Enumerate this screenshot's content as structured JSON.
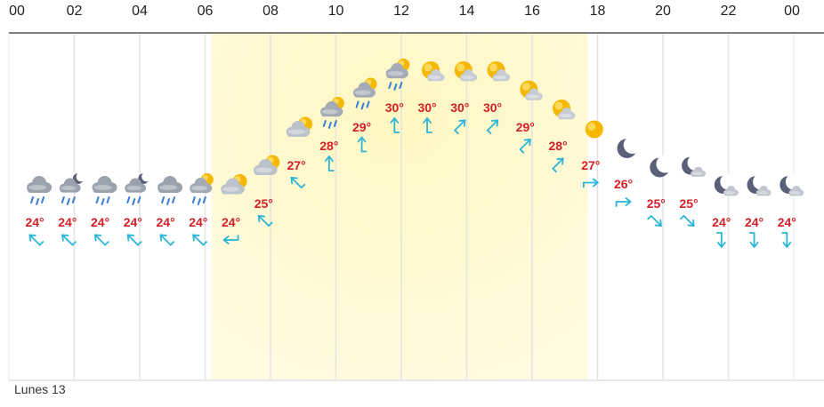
{
  "chart_data": {
    "type": "line",
    "x_ticks": [
      "00",
      "02",
      "04",
      "06",
      "08",
      "10",
      "12",
      "14",
      "16",
      "18",
      "20",
      "22",
      "00"
    ],
    "day_label": "Lunes 13",
    "points": [
      {
        "hour": 0,
        "temp": 24,
        "icon": "rain-cloud-icon",
        "wind_dir": 315
      },
      {
        "hour": 1,
        "temp": 24,
        "icon": "night-rain-icon",
        "wind_dir": 315
      },
      {
        "hour": 2,
        "temp": 24,
        "icon": "rain-cloud-icon",
        "wind_dir": 315
      },
      {
        "hour": 3,
        "temp": 24,
        "icon": "night-rain-icon",
        "wind_dir": 315
      },
      {
        "hour": 4,
        "temp": 24,
        "icon": "rain-cloud-icon",
        "wind_dir": 315
      },
      {
        "hour": 5,
        "temp": 24,
        "icon": "sun-rain-icon",
        "wind_dir": 315
      },
      {
        "hour": 6,
        "temp": 24,
        "icon": "partly-cloudy-icon",
        "wind_dir": 270
      },
      {
        "hour": 7,
        "temp": 25,
        "icon": "partly-cloudy-icon",
        "wind_dir": 315
      },
      {
        "hour": 8,
        "temp": 27,
        "icon": "partly-cloudy-icon",
        "wind_dir": 315
      },
      {
        "hour": 9,
        "temp": 28,
        "icon": "sun-rain-icon",
        "wind_dir": 0
      },
      {
        "hour": 10,
        "temp": 29,
        "icon": "sun-rain-icon",
        "wind_dir": 0
      },
      {
        "hour": 11,
        "temp": 30,
        "icon": "sun-rain-icon",
        "wind_dir": 0
      },
      {
        "hour": 12,
        "temp": 30,
        "icon": "partly-sunny-icon",
        "wind_dir": 0
      },
      {
        "hour": 13,
        "temp": 30,
        "icon": "partly-sunny-icon",
        "wind_dir": 45
      },
      {
        "hour": 14,
        "temp": 30,
        "icon": "partly-sunny-icon",
        "wind_dir": 45
      },
      {
        "hour": 15,
        "temp": 29,
        "icon": "partly-sunny-icon",
        "wind_dir": 45
      },
      {
        "hour": 16,
        "temp": 28,
        "icon": "partly-sunny-icon",
        "wind_dir": 45
      },
      {
        "hour": 17,
        "temp": 27,
        "icon": "sun-icon",
        "wind_dir": 90
      },
      {
        "hour": 18,
        "temp": 26,
        "icon": "moon-icon",
        "wind_dir": 90
      },
      {
        "hour": 19,
        "temp": 25,
        "icon": "moon-icon",
        "wind_dir": 135
      },
      {
        "hour": 20,
        "temp": 25,
        "icon": "moon-cloud-icon",
        "wind_dir": 135
      },
      {
        "hour": 21,
        "temp": 24,
        "icon": "moon-cloud-icon",
        "wind_dir": 180
      },
      {
        "hour": 22,
        "temp": 24,
        "icon": "moon-cloud-icon",
        "wind_dir": 180
      },
      {
        "hour": 23,
        "temp": 24,
        "icon": "moon-cloud-icon",
        "wind_dir": 180
      }
    ],
    "ylim": [
      24,
      30
    ],
    "daylight_hours": [
      6.2,
      17.7
    ],
    "grid": true,
    "colors": {
      "temp_text": "#d32027",
      "wind_arrow": "#2bb5d8",
      "grid": "#e4e4e4",
      "moon": "#5b6078",
      "sun": "#f5b800",
      "cloud": "#b8bec8",
      "rain": "#3b7fd8",
      "daylight": "#fffbe0"
    }
  }
}
